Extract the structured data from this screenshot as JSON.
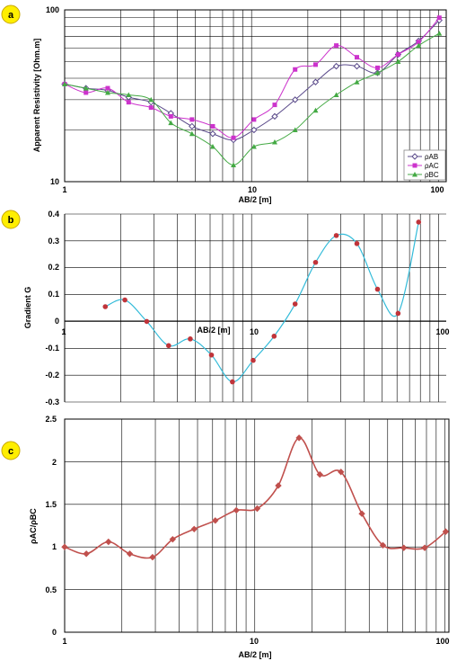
{
  "chart_data": [
    {
      "panel": "a",
      "type": "line",
      "xscale": "log",
      "yscale": "log",
      "xlim": [
        1,
        110
      ],
      "ylim": [
        10,
        100
      ],
      "xticks": [
        "1",
        "10",
        "100"
      ],
      "yticks": [
        "10",
        "100"
      ],
      "xlabel": "AB/2 [m]",
      "ylabel": "Apparent Resistivity [Ohm.m]",
      "grid": true,
      "legend": "bottom-right",
      "series": [
        {
          "name": "ρAB",
          "color": "#5a4a8a",
          "marker": "diamond",
          "x": [
            1,
            1.3,
            1.7,
            2.2,
            2.9,
            3.7,
            4.8,
            6.2,
            8,
            10.3,
            13.3,
            17.1,
            22,
            28.4,
            36.6,
            47.2,
            60.8,
            78.3,
            101
          ],
          "y": [
            37,
            35,
            34,
            31,
            29,
            25,
            21,
            19,
            17.5,
            20,
            24,
            30,
            38,
            47,
            47,
            43,
            55,
            66,
            87
          ]
        },
        {
          "name": "ρAC",
          "color": "#cc33cc",
          "marker": "square",
          "x": [
            1,
            1.3,
            1.7,
            2.2,
            2.9,
            3.7,
            4.8,
            6.2,
            8,
            10.3,
            13.3,
            17.1,
            22,
            28.4,
            36.6,
            47.2,
            60.8,
            78.3,
            101
          ],
          "y": [
            37,
            33,
            35,
            29,
            27,
            24,
            23,
            21,
            18,
            23,
            28,
            45,
            48,
            62,
            53,
            46,
            55,
            65,
            90
          ]
        },
        {
          "name": "ρBC",
          "color": "#44aa44",
          "marker": "triangle",
          "x": [
            1,
            1.3,
            1.7,
            2.2,
            2.9,
            3.7,
            4.8,
            6.2,
            8,
            10.3,
            13.3,
            17.1,
            22,
            28.4,
            36.6,
            47.2,
            60.8,
            78.3,
            101
          ],
          "y": [
            37,
            35,
            33,
            32,
            30,
            22,
            19,
            16,
            12.5,
            16,
            17,
            20,
            26,
            32,
            38,
            43,
            50,
            62,
            73
          ]
        }
      ]
    },
    {
      "panel": "b",
      "type": "scatter",
      "xscale": "log",
      "xlim": [
        1,
        110
      ],
      "ylim": [
        -0.3,
        0.4
      ],
      "xticks": [
        "1",
        "10",
        "100"
      ],
      "yticks": [
        "-0.3",
        "-0.2",
        "-0.1",
        "0",
        "0.1",
        "0.2",
        "0.3",
        "0.4"
      ],
      "xlabel": "AB/2 [m]",
      "ylabel": "Gradient  G",
      "grid": true,
      "line_color": "#33bbd9",
      "point_color": "#c0343a",
      "x": [
        1.65,
        2.1,
        2.75,
        3.6,
        4.7,
        6.1,
        7.9,
        10.2,
        13.2,
        17.1,
        22,
        28.4,
        36.6,
        47.2,
        60.8,
        78.3
      ],
      "y": [
        0.055,
        0.08,
        0.0,
        -0.09,
        -0.065,
        -0.125,
        -0.225,
        -0.145,
        -0.055,
        0.065,
        0.22,
        0.32,
        0.29,
        0.12,
        0.03,
        0.37
      ]
    },
    {
      "panel": "c",
      "type": "line",
      "xscale": "log",
      "xlim": [
        1,
        105
      ],
      "ylim": [
        0,
        2.5
      ],
      "xticks": [
        "1",
        "10",
        "100"
      ],
      "yticks": [
        "0",
        "0.5",
        "1",
        "1.5",
        "2",
        "2.5"
      ],
      "xlabel": "AB/2 [m]",
      "ylabel": "ρAC/ρBC",
      "grid": true,
      "line_color": "#c0504d",
      "x": [
        1,
        1.3,
        1.7,
        2.2,
        2.9,
        3.7,
        4.8,
        6.2,
        8,
        10.3,
        13.3,
        17.1,
        22,
        28.4,
        36.6,
        47.2,
        60.8,
        78.3,
        101
      ],
      "y": [
        1.0,
        0.92,
        1.06,
        0.92,
        0.88,
        1.09,
        1.21,
        1.31,
        1.43,
        1.45,
        1.72,
        2.28,
        1.85,
        1.88,
        1.39,
        1.02,
        0.99,
        0.99,
        1.18
      ]
    }
  ],
  "badges": [
    "a",
    "b",
    "c"
  ],
  "colors": {
    "badge_fill": "#ffee00",
    "badge_stroke": "#c9a800"
  }
}
